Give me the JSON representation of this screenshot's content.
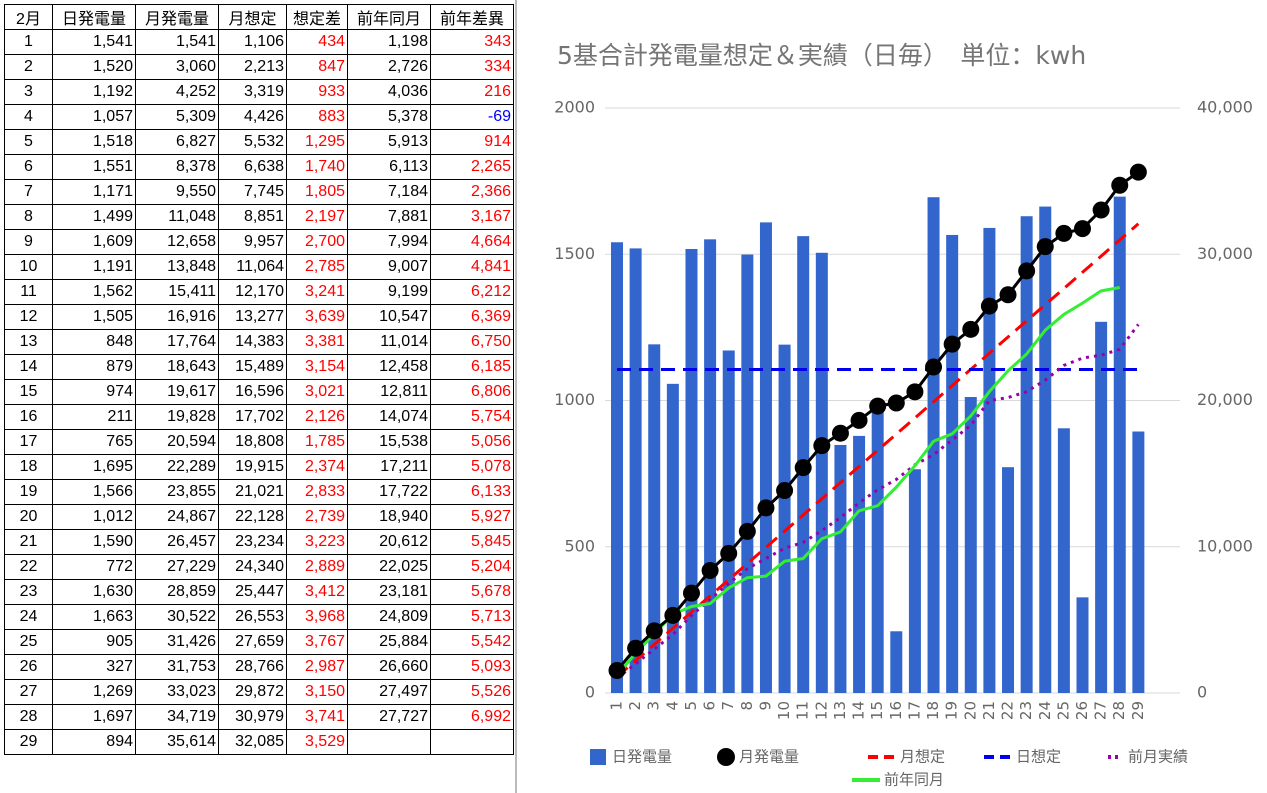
{
  "table": {
    "header": [
      "2月",
      "日発電量",
      "月発電量",
      "月想定",
      "想定差",
      "前年同月",
      "前年差異"
    ],
    "rows": [
      [
        "1",
        "1,541",
        "1,541",
        "1,106",
        "434",
        "1,198",
        "343"
      ],
      [
        "2",
        "1,520",
        "3,060",
        "2,213",
        "847",
        "2,726",
        "334"
      ],
      [
        "3",
        "1,192",
        "4,252",
        "3,319",
        "933",
        "4,036",
        "216"
      ],
      [
        "4",
        "1,057",
        "5,309",
        "4,426",
        "883",
        "5,378",
        "-69"
      ],
      [
        "5",
        "1,518",
        "6,827",
        "5,532",
        "1,295",
        "5,913",
        "914"
      ],
      [
        "6",
        "1,551",
        "8,378",
        "6,638",
        "1,740",
        "6,113",
        "2,265"
      ],
      [
        "7",
        "1,171",
        "9,550",
        "7,745",
        "1,805",
        "7,184",
        "2,366"
      ],
      [
        "8",
        "1,499",
        "11,048",
        "8,851",
        "2,197",
        "7,881",
        "3,167"
      ],
      [
        "9",
        "1,609",
        "12,658",
        "9,957",
        "2,700",
        "7,994",
        "4,664"
      ],
      [
        "10",
        "1,191",
        "13,848",
        "11,064",
        "2,785",
        "9,007",
        "4,841"
      ],
      [
        "11",
        "1,562",
        "15,411",
        "12,170",
        "3,241",
        "9,199",
        "6,212"
      ],
      [
        "12",
        "1,505",
        "16,916",
        "13,277",
        "3,639",
        "10,547",
        "6,369"
      ],
      [
        "13",
        "848",
        "17,764",
        "14,383",
        "3,381",
        "11,014",
        "6,750"
      ],
      [
        "14",
        "879",
        "18,643",
        "15,489",
        "3,154",
        "12,458",
        "6,185"
      ],
      [
        "15",
        "974",
        "19,617",
        "16,596",
        "3,021",
        "12,811",
        "6,806"
      ],
      [
        "16",
        "211",
        "19,828",
        "17,702",
        "2,126",
        "14,074",
        "5,754"
      ],
      [
        "17",
        "765",
        "20,594",
        "18,808",
        "1,785",
        "15,538",
        "5,056"
      ],
      [
        "18",
        "1,695",
        "22,289",
        "19,915",
        "2,374",
        "17,211",
        "5,078"
      ],
      [
        "19",
        "1,566",
        "23,855",
        "21,021",
        "2,833",
        "17,722",
        "6,133"
      ],
      [
        "20",
        "1,012",
        "24,867",
        "22,128",
        "2,739",
        "18,940",
        "5,927"
      ],
      [
        "21",
        "1,590",
        "26,457",
        "23,234",
        "3,223",
        "20,612",
        "5,845"
      ],
      [
        "22",
        "772",
        "27,229",
        "24,340",
        "2,889",
        "22,025",
        "5,204"
      ],
      [
        "23",
        "1,630",
        "28,859",
        "25,447",
        "3,412",
        "23,181",
        "5,678"
      ],
      [
        "24",
        "1,663",
        "30,522",
        "26,553",
        "3,968",
        "24,809",
        "5,713"
      ],
      [
        "25",
        "905",
        "31,426",
        "27,659",
        "3,767",
        "25,884",
        "5,542"
      ],
      [
        "26",
        "327",
        "31,753",
        "28,766",
        "2,987",
        "26,660",
        "5,093"
      ],
      [
        "27",
        "1,269",
        "33,023",
        "29,872",
        "3,150",
        "27,497",
        "5,526"
      ],
      [
        "28",
        "1,697",
        "34,719",
        "30,979",
        "3,741",
        "27,727",
        "6,992"
      ],
      [
        "29",
        "894",
        "35,614",
        "32,085",
        "3,529",
        null,
        null
      ]
    ]
  },
  "chart_data": {
    "type": "combo",
    "title": "5基合計発電量想定＆実績（日毎）　単位：kwh",
    "categories": [
      "1",
      "2",
      "3",
      "4",
      "5",
      "6",
      "7",
      "8",
      "9",
      "10",
      "11",
      "12",
      "13",
      "14",
      "15",
      "16",
      "17",
      "18",
      "19",
      "20",
      "21",
      "22",
      "23",
      "24",
      "25",
      "26",
      "27",
      "28",
      "29"
    ],
    "ylim": [
      0,
      2000
    ],
    "yticks": [
      0,
      500,
      1000,
      1500,
      2000
    ],
    "y2lim": [
      0,
      40000
    ],
    "y2ticks": [
      0,
      {
        "value": 10000,
        "label": "10,000"
      },
      {
        "value": 20000,
        "label": "20,000"
      },
      {
        "value": 30000,
        "label": "30,000"
      },
      {
        "value": 40000,
        "label": "40,000"
      }
    ],
    "grid": true,
    "series": [
      {
        "name": "日発電量",
        "kind": "bar",
        "color": "#3366cc",
        "values": [
          1541,
          1520,
          1192,
          1057,
          1518,
          1551,
          1171,
          1499,
          1609,
          1191,
          1562,
          1505,
          848,
          879,
          974,
          211,
          765,
          1695,
          1566,
          1012,
          1590,
          772,
          1630,
          1663,
          905,
          327,
          1269,
          1697,
          894
        ]
      },
      {
        "name": "月発電量",
        "kind": "line-marker",
        "axis": "y2",
        "color": "#000000",
        "values": [
          1541,
          3060,
          4252,
          5309,
          6827,
          8378,
          9550,
          11048,
          12658,
          13848,
          15411,
          16916,
          17764,
          18643,
          19617,
          19828,
          20594,
          22289,
          23855,
          24867,
          26457,
          27229,
          28859,
          30522,
          31426,
          31753,
          33023,
          34719,
          35614
        ]
      },
      {
        "name": "月想定",
        "kind": "dashed",
        "axis": "y2",
        "color": "#ff0000",
        "values": [
          1106,
          2213,
          3319,
          4426,
          5532,
          6638,
          7745,
          8851,
          9957,
          11064,
          12170,
          13277,
          14383,
          15489,
          16596,
          17702,
          18808,
          19915,
          21021,
          22128,
          23234,
          24340,
          25447,
          26553,
          27659,
          28766,
          29872,
          30979,
          32085
        ]
      },
      {
        "name": "日想定",
        "kind": "dashed",
        "color": "#0000ee",
        "values": [
          1106,
          1106,
          1106,
          1106,
          1106,
          1106,
          1106,
          1106,
          1106,
          1106,
          1106,
          1106,
          1106,
          1106,
          1106,
          1106,
          1106,
          1106,
          1106,
          1106,
          1106,
          1106,
          1106,
          1106,
          1106,
          1106,
          1106,
          1106,
          1106
        ]
      },
      {
        "name": "前月実績",
        "kind": "dotted",
        "axis": "y2",
        "color": "#9900aa",
        "values": [
          1000,
          2000,
          3000,
          4000,
          5300,
          6400,
          7500,
          8500,
          9200,
          9900,
          10300,
          11100,
          12000,
          13000,
          13900,
          14600,
          15600,
          16300,
          17300,
          18300,
          20000,
          20200,
          20600,
          21400,
          22400,
          22900,
          23100,
          23500,
          25200
        ]
      },
      {
        "name": "前年同月",
        "kind": "line",
        "axis": "y2",
        "color": "#33ee33",
        "values": [
          1198,
          2726,
          4036,
          5378,
          5913,
          6113,
          7184,
          7881,
          7994,
          9007,
          9199,
          10547,
          11014,
          12458,
          12811,
          14074,
          15538,
          17211,
          17722,
          18940,
          20612,
          22025,
          23181,
          24809,
          25884,
          26660,
          27497,
          27727,
          null
        ]
      }
    ]
  }
}
